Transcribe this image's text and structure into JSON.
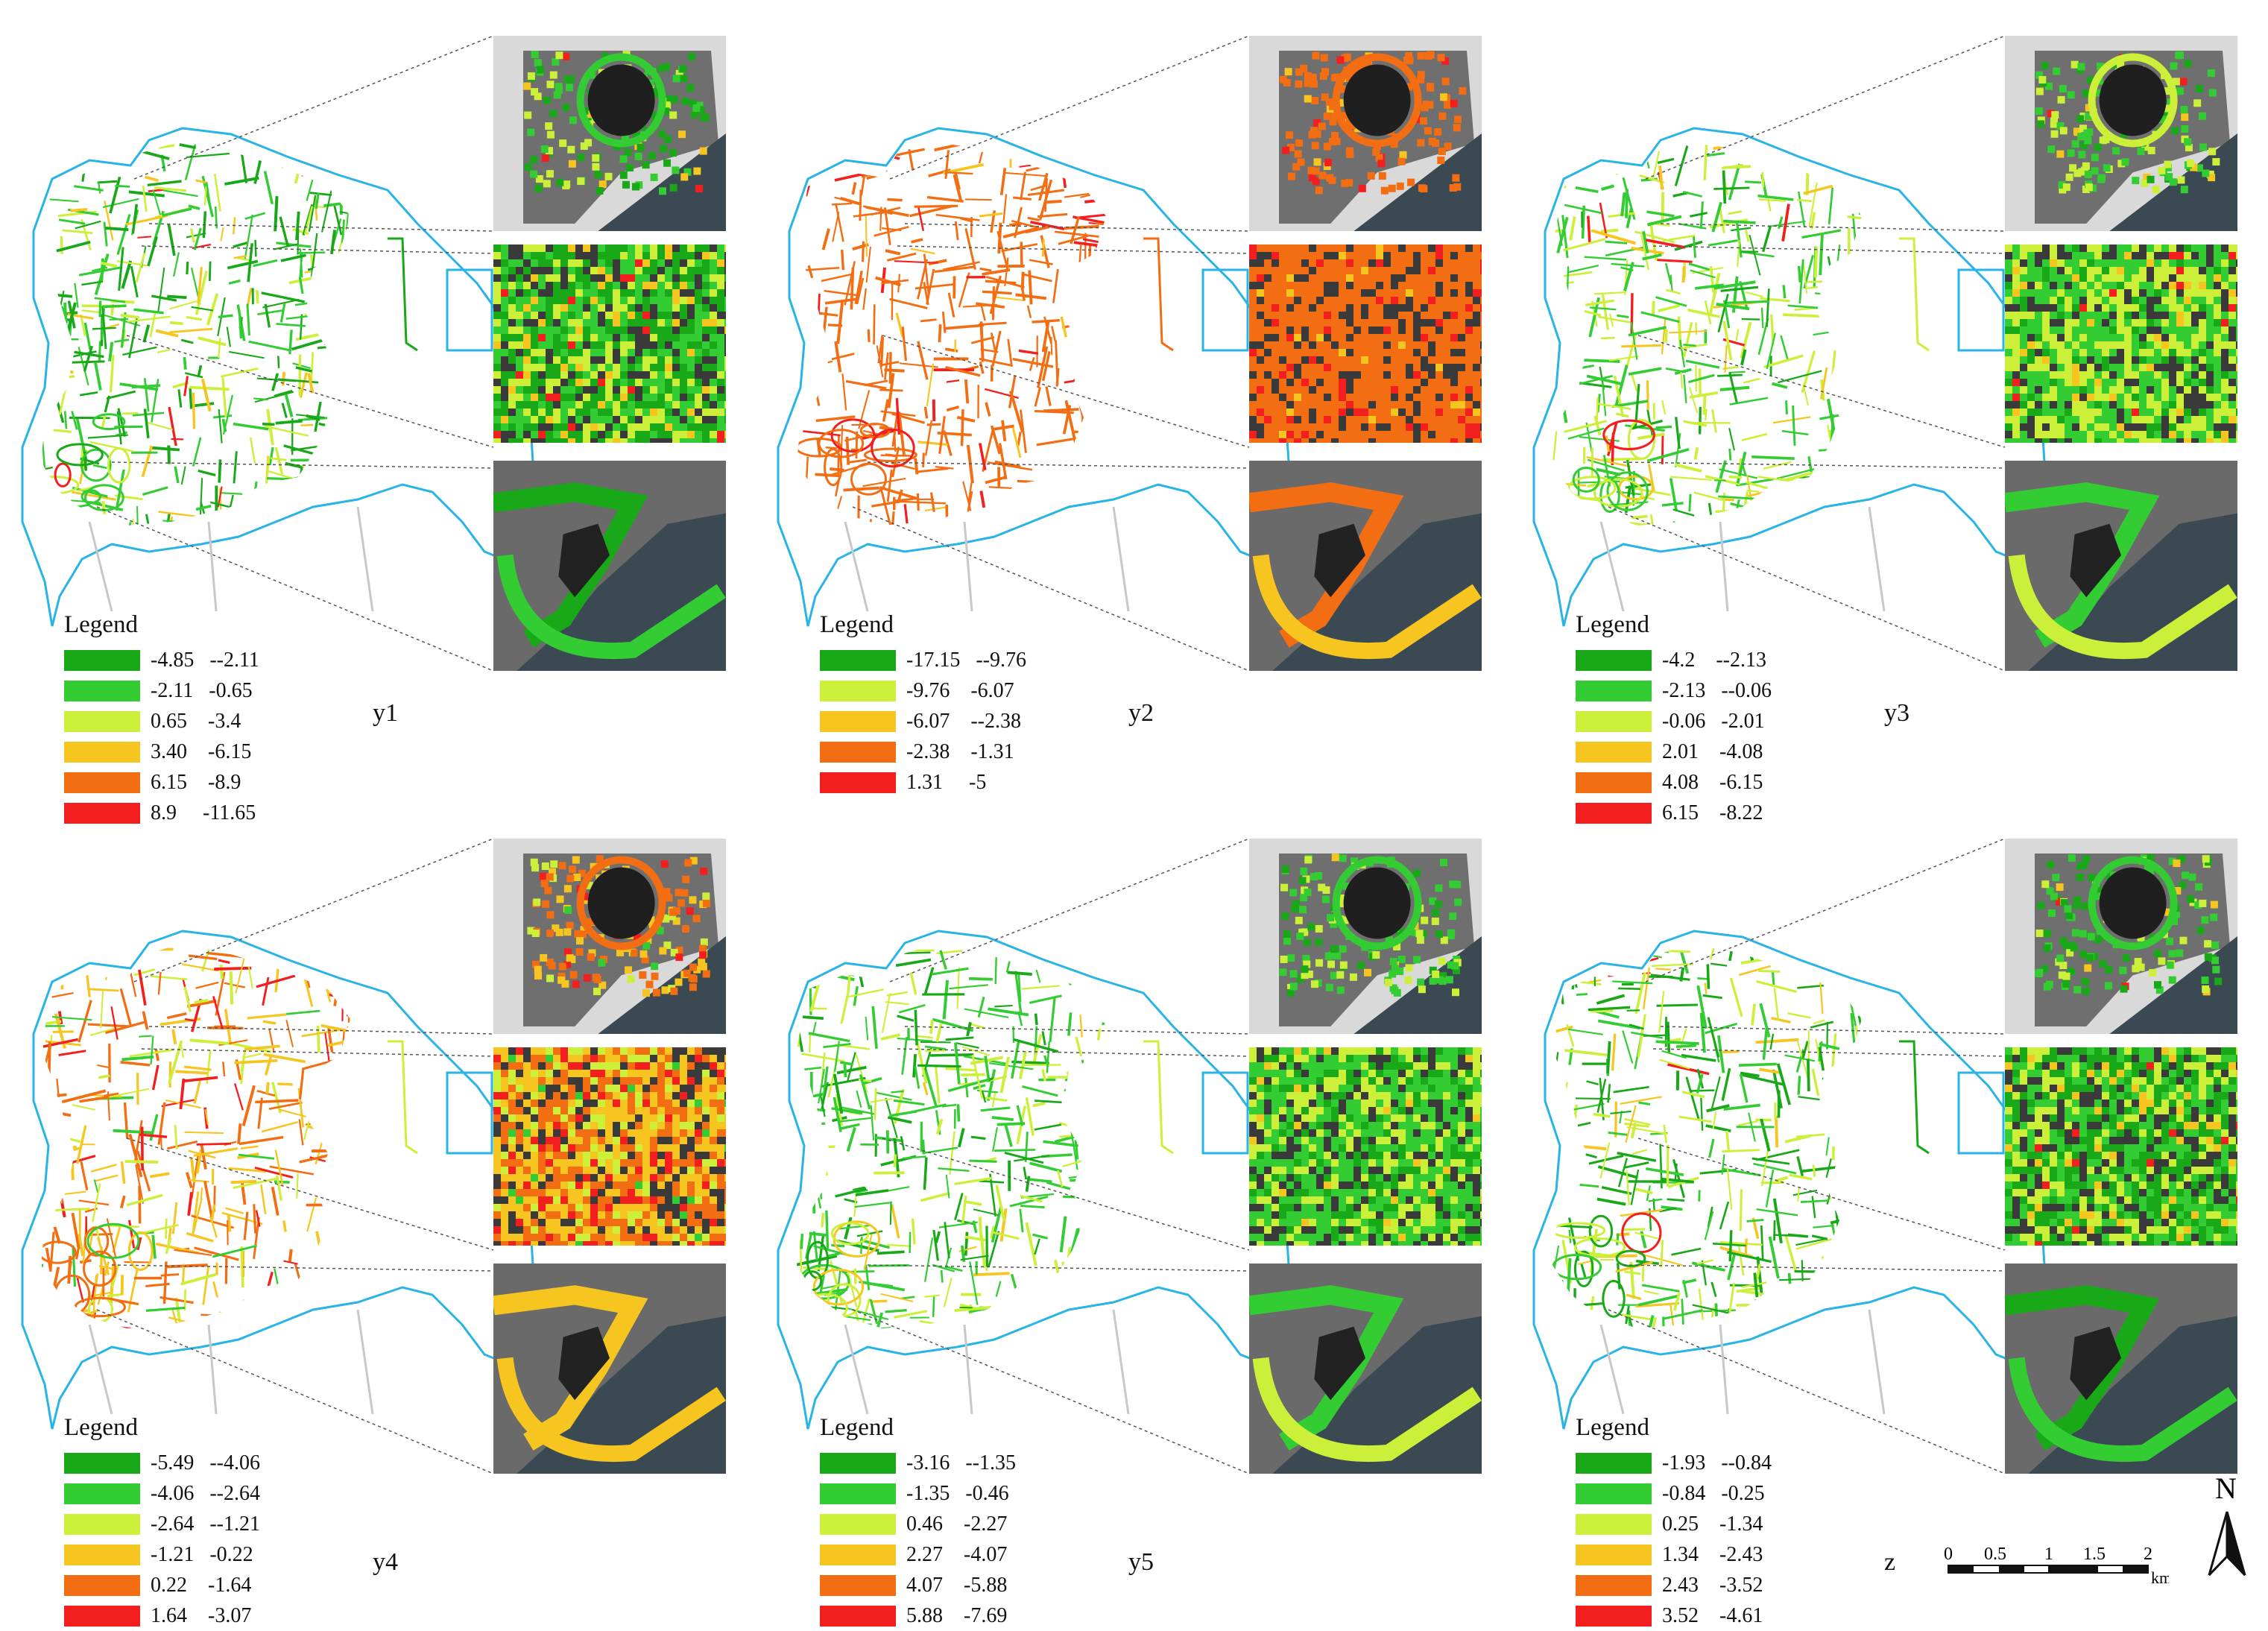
{
  "panels": [
    {
      "label": "y1",
      "theme": "mixed-green",
      "legend": {
        "title": "Legend",
        "items": [
          {
            "range": "-4.85   --2.11",
            "color": "#18a818"
          },
          {
            "range": "-2.11   -0.65",
            "color": "#33cc33"
          },
          {
            "range": "0.65    -3.4",
            "color": "#ccf03a"
          },
          {
            "range": "3.40    -6.15",
            "color": "#f6c51f"
          },
          {
            "range": "6.15    -8.9",
            "color": "#f36d12"
          },
          {
            "range": "8.9     -11.65",
            "color": "#f31f1f"
          }
        ]
      }
    },
    {
      "label": "y2",
      "theme": "orange",
      "legend": {
        "title": "Legend",
        "items": [
          {
            "range": "-17.15   --9.76",
            "color": "#18a818"
          },
          {
            "range": "-9.76    -6.07",
            "color": "#ccf03a"
          },
          {
            "range": "-6.07    --2.38",
            "color": "#f6c51f"
          },
          {
            "range": "-2.38    -1.31",
            "color": "#f36d12"
          },
          {
            "range": "1.31     -5",
            "color": "#f31f1f"
          }
        ]
      }
    },
    {
      "label": "y3",
      "theme": "green-yellow",
      "legend": {
        "title": "Legend",
        "items": [
          {
            "range": "-4.2    --2.13",
            "color": "#18a818"
          },
          {
            "range": "-2.13   --0.06",
            "color": "#33cc33"
          },
          {
            "range": "-0.06   -2.01",
            "color": "#ccf03a"
          },
          {
            "range": "2.01    -4.08",
            "color": "#f6c51f"
          },
          {
            "range": "4.08    -6.15",
            "color": "#f36d12"
          },
          {
            "range": "6.15    -8.22",
            "color": "#f31f1f"
          }
        ]
      }
    },
    {
      "label": "y4",
      "theme": "warm",
      "legend": {
        "title": "Legend",
        "items": [
          {
            "range": "-5.49   --4.06",
            "color": "#18a818"
          },
          {
            "range": "-4.06   --2.64",
            "color": "#33cc33"
          },
          {
            "range": "-2.64   --1.21",
            "color": "#ccf03a"
          },
          {
            "range": "-1.21   -0.22",
            "color": "#f6c51f"
          },
          {
            "range": "0.22    -1.64",
            "color": "#f36d12"
          },
          {
            "range": "1.64    -3.07",
            "color": "#f31f1f"
          }
        ]
      }
    },
    {
      "label": "y5",
      "theme": "green",
      "legend": {
        "title": "Legend",
        "items": [
          {
            "range": "-3.16   --1.35",
            "color": "#18a818"
          },
          {
            "range": "-1.35   -0.46",
            "color": "#33cc33"
          },
          {
            "range": "0.46    -2.27",
            "color": "#ccf03a"
          },
          {
            "range": "2.27    -4.07",
            "color": "#f6c51f"
          },
          {
            "range": "4.07    -5.88",
            "color": "#f36d12"
          },
          {
            "range": "5.88    -7.69",
            "color": "#f31f1f"
          }
        ]
      }
    },
    {
      "label": "z",
      "theme": "mixed-green",
      "legend": {
        "title": "Legend",
        "items": [
          {
            "range": "-1.93   --0.84",
            "color": "#18a818"
          },
          {
            "range": "-0.84   -0.25",
            "color": "#33cc33"
          },
          {
            "range": "0.25    -1.34",
            "color": "#ccf03a"
          },
          {
            "range": "1.34    -2.43",
            "color": "#f6c51f"
          },
          {
            "range": "2.43    -3.52",
            "color": "#f36d12"
          },
          {
            "range": "3.52    -4.61",
            "color": "#f31f1f"
          }
        ]
      }
    }
  ],
  "scale": {
    "ticks": [
      "0",
      "0.5",
      "1",
      "1.5",
      "2"
    ],
    "unit": "km"
  },
  "north": {
    "label": "N"
  },
  "colors": {
    "boundary": "#28b4e6",
    "water": "#3b4a52",
    "urban": "#7f7f7f"
  }
}
